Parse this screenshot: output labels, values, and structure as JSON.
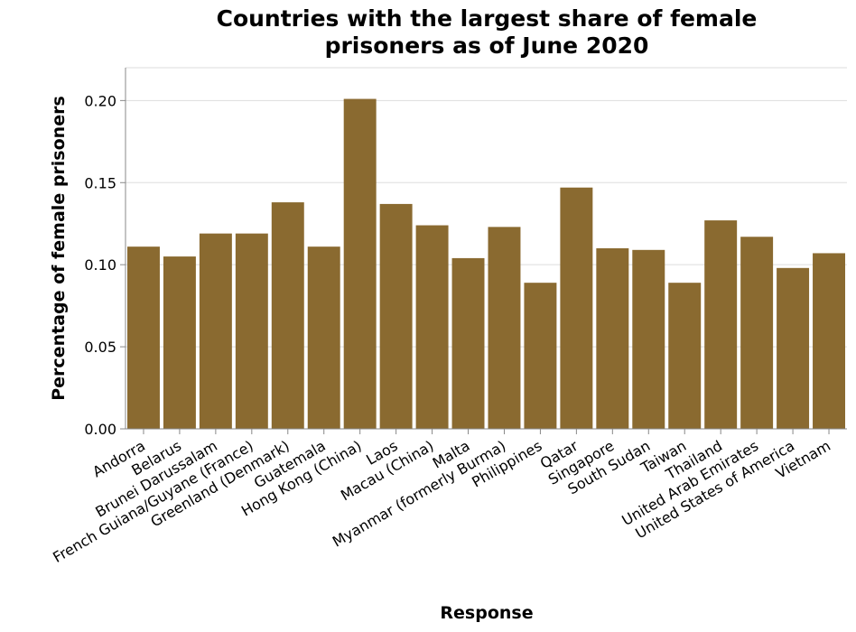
{
  "chart_data": {
    "type": "bar",
    "title_lines": [
      "Countries with the largest share of female",
      "prisoners as of June 2020"
    ],
    "xlabel": "Response",
    "ylabel": "Percentage of female prisoners",
    "ylim": [
      0,
      0.22
    ],
    "yticks": [
      "0.00",
      "0.05",
      "0.10",
      "0.15",
      "0.20"
    ],
    "ytick_values": [
      0,
      0.05,
      0.1,
      0.15,
      0.2
    ],
    "grid": true,
    "bar_color": "#8a6a30",
    "categories": [
      "Andorra",
      "Belarus",
      "Brunei Darussalam",
      "French Guiana/Guyane (France)",
      "Greenland (Denmark)",
      "Guatemala",
      "Hong Kong (China)",
      "Laos",
      "Macau (China)",
      "Malta",
      "Myanmar (formerly Burma)",
      "Philippines",
      "Qatar",
      "Singapore",
      "South Sudan",
      "Taiwan",
      "Thailand",
      "United Arab Emirates",
      "United States of America",
      "Vietnam"
    ],
    "values": [
      0.111,
      0.105,
      0.119,
      0.119,
      0.138,
      0.111,
      0.201,
      0.137,
      0.124,
      0.104,
      0.123,
      0.089,
      0.147,
      0.11,
      0.109,
      0.089,
      0.127,
      0.117,
      0.098,
      0.107
    ]
  }
}
